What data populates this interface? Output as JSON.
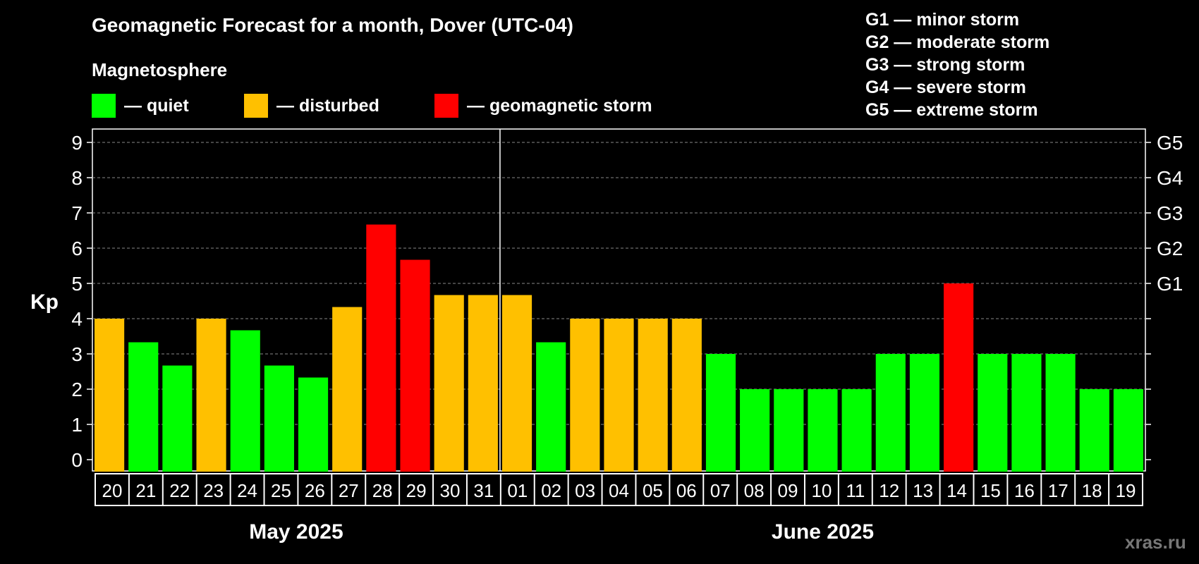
{
  "header": {
    "title": "Geomagnetic Forecast for a month, Dover (UTC-04)",
    "subtitle": "Magnetosphere"
  },
  "legend": [
    {
      "label": "— quiet",
      "color": "#00ff00"
    },
    {
      "label": "— disturbed",
      "color": "#ffc000"
    },
    {
      "label": "— geomagnetic storm",
      "color": "#ff0000"
    }
  ],
  "storm_scale": [
    "G1 — minor storm",
    "G2 — moderate storm",
    "G3 — strong storm",
    "G4 — severe storm",
    "G5 — extreme storm"
  ],
  "watermark": "xras.ru",
  "chart_data": {
    "type": "bar",
    "title": "Geomagnetic Forecast for a month, Dover (UTC-04)",
    "ylabel": "Kp",
    "ylim": [
      0,
      9
    ],
    "yticks": [
      "0",
      "1",
      "2",
      "3",
      "4",
      "5",
      "6",
      "7",
      "8",
      "9"
    ],
    "right_axis": [
      {
        "kp": 5,
        "label": "G1"
      },
      {
        "kp": 6,
        "label": "G2"
      },
      {
        "kp": 7,
        "label": "G3"
      },
      {
        "kp": 8,
        "label": "G4"
      },
      {
        "kp": 9,
        "label": "G5"
      }
    ],
    "categories": [
      "20",
      "21",
      "22",
      "23",
      "24",
      "25",
      "26",
      "27",
      "28",
      "29",
      "30",
      "31",
      "01",
      "02",
      "03",
      "04",
      "05",
      "06",
      "07",
      "08",
      "09",
      "10",
      "11",
      "12",
      "13",
      "14",
      "15",
      "16",
      "17",
      "18",
      "19"
    ],
    "values": [
      4.0,
      3.33,
      2.67,
      4.0,
      3.67,
      2.67,
      2.33,
      4.33,
      6.67,
      5.67,
      4.67,
      4.67,
      4.67,
      3.33,
      4.0,
      4.0,
      4.0,
      4.0,
      3.0,
      2.0,
      2.0,
      2.0,
      2.0,
      3.0,
      3.0,
      5.0,
      3.0,
      3.0,
      3.0,
      2.0,
      2.0
    ],
    "levels": [
      "disturbed",
      "quiet",
      "quiet",
      "disturbed",
      "quiet",
      "quiet",
      "quiet",
      "disturbed",
      "storm",
      "storm",
      "disturbed",
      "disturbed",
      "disturbed",
      "quiet",
      "disturbed",
      "disturbed",
      "disturbed",
      "disturbed",
      "quiet",
      "quiet",
      "quiet",
      "quiet",
      "quiet",
      "quiet",
      "quiet",
      "storm",
      "quiet",
      "quiet",
      "quiet",
      "quiet",
      "quiet"
    ],
    "level_colors": {
      "quiet": "#00ff00",
      "disturbed": "#ffc000",
      "storm": "#ff0000"
    },
    "months": [
      {
        "label": "May 2025",
        "from": 0,
        "to": 11
      },
      {
        "label": "June 2025",
        "from": 12,
        "to": 30
      }
    ],
    "grid": true
  }
}
